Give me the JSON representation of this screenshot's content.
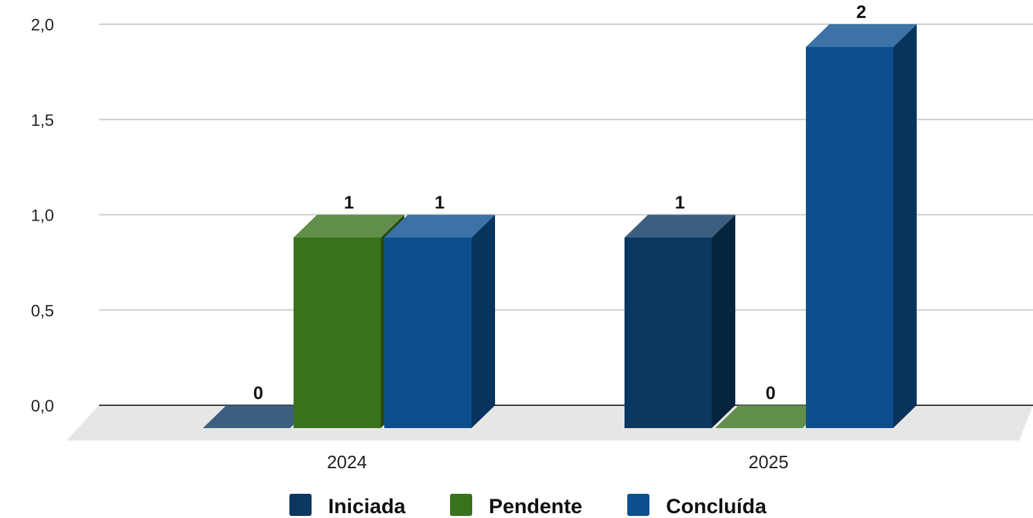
{
  "chart_data": {
    "type": "bar",
    "title": "",
    "xlabel": "",
    "ylabel": "",
    "categories": [
      "2024",
      "2025"
    ],
    "series": [
      {
        "name": "Iniciada",
        "values": [
          0,
          1
        ],
        "color": "#0b3760"
      },
      {
        "name": "Pendente",
        "values": [
          1,
          0
        ],
        "color": "#39721d"
      },
      {
        "name": "Concluída",
        "values": [
          1,
          2
        ],
        "color": "#0b4f8f"
      }
    ],
    "ylim": [
      0,
      2
    ],
    "yticks": [
      "0,0",
      "0,5",
      "1,0",
      "1,5",
      "2,0"
    ],
    "grid": true,
    "legend_position": "bottom",
    "style": "3d"
  }
}
